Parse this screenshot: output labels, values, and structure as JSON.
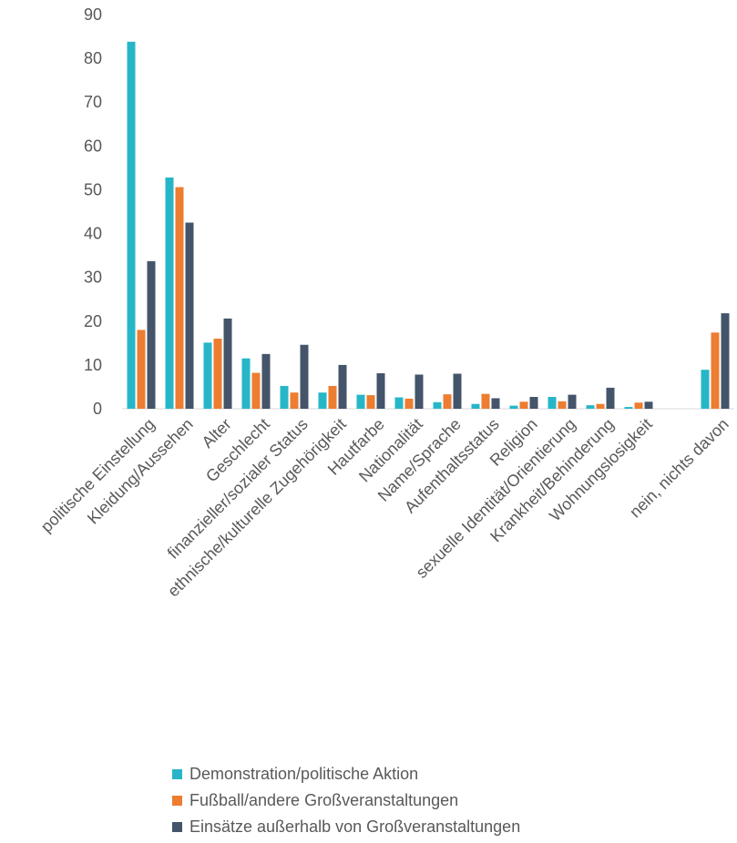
{
  "chart_data": {
    "type": "bar",
    "categories": [
      "politische Einstellung",
      "Kleidung/Aussehen",
      "Alter",
      "Geschlecht",
      "finanzieller/sozialer Status",
      "ethnische/kulturelle Zugehörigkeit",
      "Hautfarbe",
      "Nationalität",
      "Name/Sprache",
      "Aufenthaltsstatus",
      "Religion",
      "sexuelle Identität/Orientierung",
      "Krankheit/Behinderung",
      "Wohnungslosigkeit",
      "",
      "nein, nichts davon"
    ],
    "series": [
      {
        "name": "Demonstration/politische Aktion",
        "color": "#27b6c8",
        "values": [
          83.8,
          52.8,
          15.1,
          11.5,
          5.2,
          3.7,
          3.2,
          2.6,
          1.5,
          1.1,
          0.7,
          2.7,
          0.8,
          0.4,
          null,
          8.9
        ]
      },
      {
        "name": "Fußball/andere Großveranstaltungen",
        "color": "#ed7d31",
        "values": [
          18.0,
          50.6,
          16.0,
          8.2,
          3.7,
          5.2,
          3.1,
          2.3,
          3.3,
          3.4,
          1.6,
          1.7,
          1.1,
          1.4,
          null,
          17.4
        ]
      },
      {
        "name": "Einsätze außerhalb von Großveranstaltungen",
        "color": "#44546a",
        "values": [
          33.7,
          42.5,
          20.6,
          12.5,
          14.6,
          10.0,
          8.1,
          7.8,
          8.0,
          2.4,
          2.7,
          3.2,
          4.8,
          1.6,
          null,
          21.8
        ]
      }
    ],
    "y_ticks": [
      "0",
      "10",
      "20",
      "30",
      "40",
      "50",
      "60",
      "70",
      "80",
      "90"
    ],
    "ylim": [
      0,
      90
    ],
    "grid": false,
    "legend_position": "bottom",
    "title": "",
    "xlabel": "",
    "ylabel": ""
  }
}
